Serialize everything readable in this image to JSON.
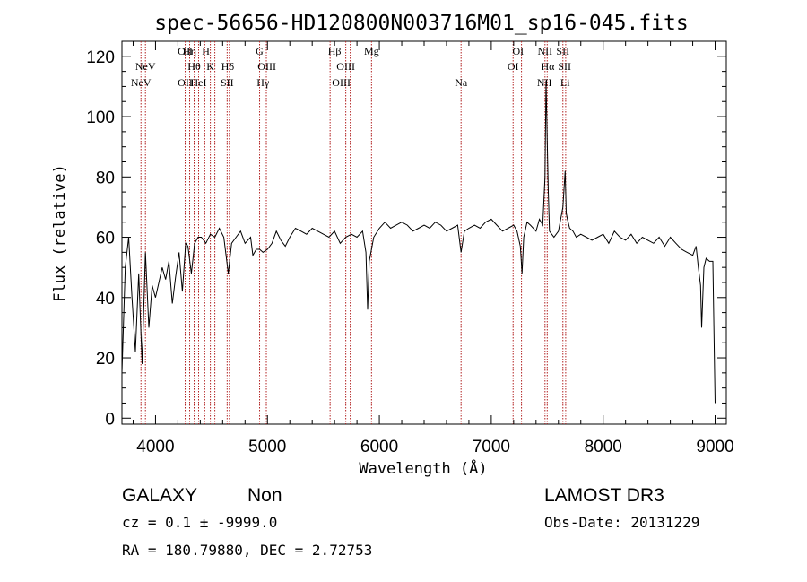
{
  "chart_data": {
    "type": "line",
    "title": "spec-56656-HD120800N003716M01_sp16-045.fits",
    "xlabel": "Wavelength (Å)",
    "ylabel": "Flux (relative)",
    "xlim": [
      3700,
      9100
    ],
    "ylim": [
      -2,
      125
    ],
    "xticks": [
      4000,
      5000,
      6000,
      7000,
      8000,
      9000
    ],
    "yticks": [
      0,
      20,
      40,
      60,
      80,
      100,
      120
    ],
    "grid": false,
    "spectrum": {
      "x": [
        3700,
        3730,
        3760,
        3790,
        3820,
        3850,
        3880,
        3910,
        3940,
        3970,
        4000,
        4030,
        4060,
        4090,
        4120,
        4150,
        4180,
        4210,
        4240,
        4270,
        4290,
        4320,
        4350,
        4380,
        4410,
        4450,
        4490,
        4530,
        4570,
        4610,
        4650,
        4680,
        4720,
        4760,
        4800,
        4850,
        4870,
        4900,
        4930,
        4960,
        5000,
        5040,
        5080,
        5120,
        5160,
        5200,
        5250,
        5300,
        5350,
        5400,
        5450,
        5500,
        5550,
        5600,
        5650,
        5700,
        5750,
        5800,
        5850,
        5880,
        5895,
        5910,
        5950,
        6000,
        6050,
        6100,
        6150,
        6200,
        6250,
        6300,
        6350,
        6400,
        6450,
        6500,
        6550,
        6600,
        6650,
        6700,
        6730,
        6760,
        6800,
        6850,
        6900,
        6950,
        7000,
        7050,
        7100,
        7150,
        7200,
        7230,
        7260,
        7275,
        7290,
        7320,
        7350,
        7400,
        7430,
        7460,
        7480,
        7490,
        7500,
        7510,
        7520,
        7540,
        7560,
        7600,
        7640,
        7660,
        7670,
        7680,
        7700,
        7730,
        7760,
        7800,
        7850,
        7900,
        7950,
        8000,
        8050,
        8100,
        8150,
        8200,
        8250,
        8300,
        8350,
        8400,
        8450,
        8500,
        8550,
        8600,
        8650,
        8700,
        8750,
        8800,
        8830,
        8850,
        8870,
        8880,
        8900,
        8920,
        8950,
        8980,
        9000
      ],
      "y": [
        15,
        50,
        60,
        40,
        22,
        48,
        18,
        55,
        30,
        44,
        40,
        45,
        50,
        46,
        52,
        38,
        47,
        55,
        42,
        58,
        57,
        48,
        58,
        60,
        60,
        58,
        61,
        60,
        63,
        60,
        48,
        58,
        60,
        62,
        58,
        60,
        54,
        56,
        56,
        55,
        56,
        58,
        62,
        59,
        57,
        60,
        63,
        62,
        61,
        63,
        62,
        61,
        60,
        62,
        58,
        60,
        61,
        60,
        62,
        55,
        36,
        52,
        60,
        63,
        65,
        63,
        64,
        65,
        64,
        62,
        63,
        64,
        63,
        65,
        64,
        62,
        63,
        64,
        55,
        62,
        63,
        64,
        63,
        65,
        66,
        64,
        62,
        63,
        64,
        62,
        57,
        48,
        60,
        65,
        64,
        62,
        66,
        64,
        80,
        112,
        92,
        75,
        62,
        61,
        60,
        62,
        70,
        82,
        68,
        66,
        63,
        62,
        60,
        61,
        60,
        59,
        60,
        61,
        58,
        62,
        60,
        59,
        61,
        58,
        60,
        59,
        58,
        60,
        57,
        60,
        58,
        56,
        55,
        54,
        57,
        50,
        44,
        30,
        50,
        53,
        52,
        52,
        5
      ]
    },
    "lines": [
      {
        "label": "NeV",
        "wl": 3870,
        "row": 3
      },
      {
        "label": "NeV",
        "wl": 3910,
        "row": 2
      },
      {
        "label": "OII",
        "wl": 4265,
        "row": 1
      },
      {
        "label": "OII",
        "wl": 4265,
        "row": 3
      },
      {
        "label": "Hη",
        "wl": 4305,
        "row": 1
      },
      {
        "label": "Hθ",
        "wl": 4345,
        "row": 2
      },
      {
        "label": "HeI",
        "wl": 4385,
        "row": 3
      },
      {
        "label": "H",
        "wl": 4450,
        "row": 1
      },
      {
        "label": "K",
        "wl": 4490,
        "row": 2
      },
      {
        "label": "Hδ",
        "wl": 4645,
        "row": 2
      },
      {
        "label": "SII",
        "wl": 4640,
        "row": 3
      },
      {
        "label": "G",
        "wl": 4930,
        "row": 1
      },
      {
        "label": "OIII",
        "wl": 4995,
        "row": 2
      },
      {
        "label": "Hγ",
        "wl": 4960,
        "row": 3
      },
      {
        "label": "Hβ",
        "wl": 5600,
        "row": 1
      },
      {
        "label": "OIII",
        "wl": 5700,
        "row": 2
      },
      {
        "label": "OIII",
        "wl": 5660,
        "row": 3
      },
      {
        "label": "Mg",
        "wl": 5930,
        "row": 1
      },
      {
        "label": "Na",
        "wl": 6730,
        "row": 3
      },
      {
        "label": "OI",
        "wl": 7240,
        "row": 1
      },
      {
        "label": "OI",
        "wl": 7195,
        "row": 2
      },
      {
        "label": "NII",
        "wl": 7480,
        "row": 1
      },
      {
        "label": "Hα",
        "wl": 7505,
        "row": 2
      },
      {
        "label": "NII",
        "wl": 7475,
        "row": 3
      },
      {
        "label": "SII",
        "wl": 7640,
        "row": 1
      },
      {
        "label": "SII",
        "wl": 7655,
        "row": 2
      },
      {
        "label": "Li",
        "wl": 7660,
        "row": 3
      }
    ],
    "marker_wavelengths": [
      3870,
      3910,
      4265,
      4305,
      4345,
      4385,
      4440,
      4490,
      4530,
      4640,
      4660,
      4930,
      4990,
      5560,
      5700,
      5740,
      5930,
      6730,
      7195,
      7270,
      7480,
      7500,
      7640,
      7665
    ]
  },
  "info": {
    "object_class": "GALAXY",
    "subclass": "Non",
    "cz_line": "cz = 0.1 ± -9999.0",
    "radec_line": "RA = 180.79880, DEC =    2.72753",
    "survey": "LAMOST DR3",
    "obs_date": "Obs-Date: 20131229"
  },
  "colors": {
    "spectrum": "#000000",
    "marker": "#b22222"
  }
}
